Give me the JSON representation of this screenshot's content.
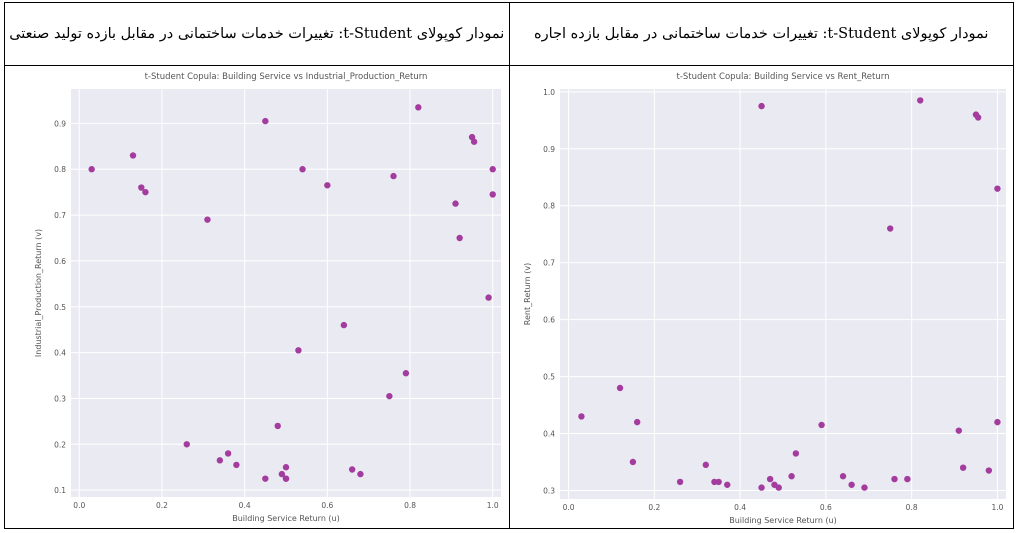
{
  "captions": [
    {
      "text": "نمودار کوپولای t-Student: تغییرات خدمات ساختمانی در مقابل بازده تولید صنعتی"
    },
    {
      "text": "نمودار کوپولای t-Student: تغییرات خدمات ساختمانی در مقابل بازده اجاره"
    }
  ],
  "chart_data": [
    {
      "type": "scatter",
      "title": "t-Student Copula: Building Service vs Industrial_Production_Return",
      "xlabel": "Building Service Return (u)",
      "ylabel": "Industrial_Production_Return (v)",
      "xlim": [
        -0.02,
        1.02
      ],
      "ylim": [
        0.085,
        0.975
      ],
      "xticks": [
        "0.0",
        "0.2",
        "0.4",
        "0.6",
        "0.8",
        "1.0"
      ],
      "xtick_values": [
        0.0,
        0.2,
        0.4,
        0.6,
        0.8,
        1.0
      ],
      "yticks": [
        "0.1",
        "0.2",
        "0.3",
        "0.4",
        "0.5",
        "0.6",
        "0.7",
        "0.8",
        "0.9"
      ],
      "ytick_values": [
        0.1,
        0.2,
        0.3,
        0.4,
        0.5,
        0.6,
        0.7,
        0.8,
        0.9
      ],
      "grid": true,
      "marker_color": "#a33c9e",
      "background": "#eaeaf2",
      "x": [
        0.03,
        0.13,
        0.15,
        0.16,
        0.26,
        0.31,
        0.34,
        0.36,
        0.38,
        0.45,
        0.45,
        0.48,
        0.49,
        0.5,
        0.5,
        0.5,
        0.53,
        0.54,
        0.6,
        0.64,
        0.66,
        0.68,
        0.75,
        0.76,
        0.79,
        0.82,
        0.91,
        0.92,
        0.95,
        0.955,
        0.99,
        1.0,
        1.0
      ],
      "y": [
        0.8,
        0.83,
        0.76,
        0.75,
        0.2,
        0.69,
        0.165,
        0.18,
        0.155,
        0.905,
        0.125,
        0.24,
        0.135,
        0.125,
        0.15,
        0.125,
        0.405,
        0.8,
        0.765,
        0.46,
        0.145,
        0.135,
        0.305,
        0.785,
        0.355,
        0.935,
        0.725,
        0.65,
        0.87,
        0.86,
        0.52,
        0.8,
        0.745
      ]
    },
    {
      "type": "scatter",
      "title": "t-Student Copula: Building Service vs Rent_Return",
      "xlabel": "Building Service Return (u)",
      "ylabel": "Rent_Return (v)",
      "xlim": [
        -0.02,
        1.02
      ],
      "ylim": [
        0.285,
        1.005
      ],
      "xticks": [
        "0.0",
        "0.2",
        "0.4",
        "0.6",
        "0.8",
        "1.0"
      ],
      "xtick_values": [
        0.0,
        0.2,
        0.4,
        0.6,
        0.8,
        1.0
      ],
      "yticks": [
        "0.3",
        "0.4",
        "0.5",
        "0.6",
        "0.7",
        "0.8",
        "0.9",
        "1.0"
      ],
      "ytick_values": [
        0.3,
        0.4,
        0.5,
        0.6,
        0.7,
        0.8,
        0.9,
        1.0
      ],
      "grid": true,
      "marker_color": "#a33c9e",
      "background": "#eaeaf2",
      "x": [
        0.03,
        0.12,
        0.15,
        0.16,
        0.26,
        0.32,
        0.34,
        0.35,
        0.37,
        0.45,
        0.45,
        0.47,
        0.48,
        0.49,
        0.52,
        0.53,
        0.59,
        0.64,
        0.66,
        0.69,
        0.75,
        0.76,
        0.79,
        0.82,
        0.91,
        0.92,
        0.95,
        0.955,
        0.98,
        1.0,
        1.0
      ],
      "y": [
        0.43,
        0.48,
        0.35,
        0.42,
        0.315,
        0.345,
        0.315,
        0.315,
        0.31,
        0.975,
        0.305,
        0.32,
        0.31,
        0.305,
        0.325,
        0.365,
        0.415,
        0.325,
        0.31,
        0.305,
        0.76,
        0.32,
        0.32,
        0.985,
        0.405,
        0.34,
        0.96,
        0.955,
        0.335,
        0.83,
        0.42
      ]
    }
  ]
}
